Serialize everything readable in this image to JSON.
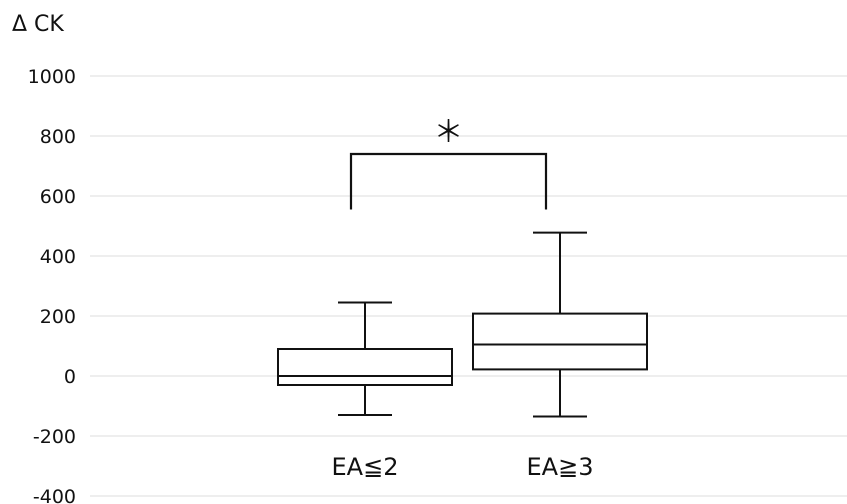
{
  "chart_data": {
    "type": "box",
    "ylabel": "Δ CK",
    "ylim": [
      -400,
      1000
    ],
    "yticks": [
      "1000",
      "800",
      "600",
      "400",
      "200",
      "0",
      "-200",
      "-400"
    ],
    "ytick_values": [
      1000,
      800,
      600,
      400,
      200,
      0,
      -200,
      -400
    ],
    "grid": true,
    "categories": [
      "EA≦2",
      "EA≧3"
    ],
    "boxes": [
      {
        "category": "EA≦2",
        "whisker_low": -130,
        "q1": -30,
        "median": 0,
        "q3": 90,
        "whisker_high": 245
      },
      {
        "category": "EA≧3",
        "whisker_low": -135,
        "q1": 22,
        "median": 105,
        "q3": 208,
        "whisker_high": 478
      }
    ],
    "significance": {
      "label": "＊",
      "between": [
        "EA≦2",
        "EA≧3"
      ],
      "bracket_top": 740,
      "bracket_bottom": 555
    }
  }
}
